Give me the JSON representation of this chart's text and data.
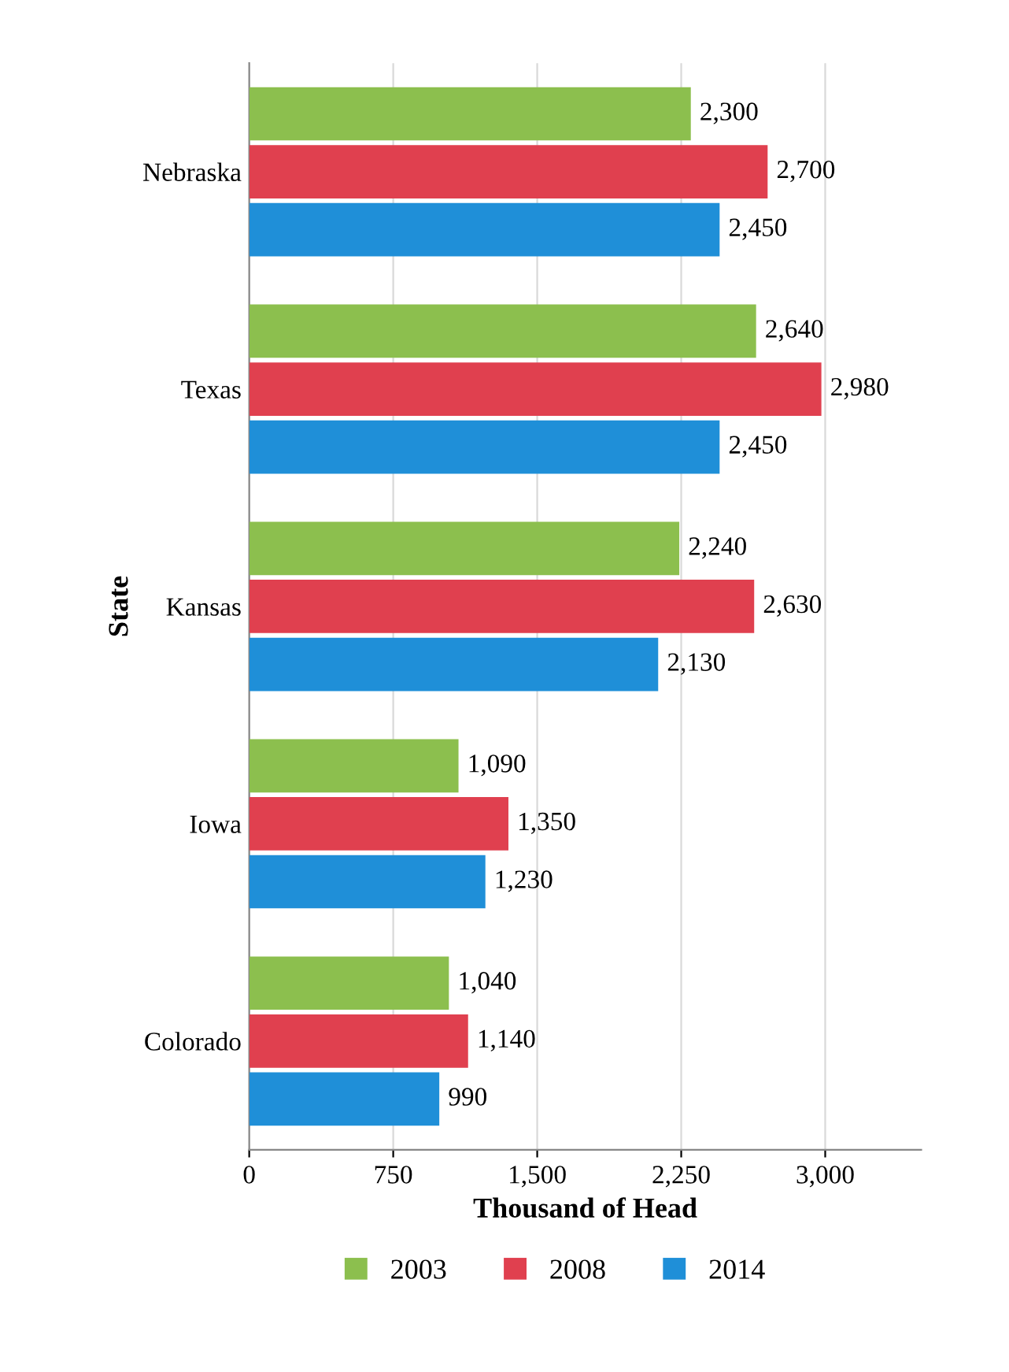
{
  "chart_data": {
    "type": "bar",
    "orientation": "horizontal",
    "ylabel": "State",
    "xlabel": "Thousand of Head",
    "categories": [
      "Nebraska",
      "Texas",
      "Kansas",
      "Iowa",
      "Colorado"
    ],
    "series": [
      {
        "name": "2003",
        "color": "#8cbf4e",
        "values": [
          2300,
          2640,
          2240,
          1090,
          1040
        ],
        "value_labels": [
          "2,300",
          "2,640",
          "2,240",
          "1,090",
          "1,040"
        ]
      },
      {
        "name": "2008",
        "color": "#e0404f",
        "values": [
          2700,
          2980,
          2630,
          1350,
          1140
        ],
        "value_labels": [
          "2,700",
          "2,980",
          "2,630",
          "1,350",
          "1,140"
        ]
      },
      {
        "name": "2014",
        "color": "#1f8fd8",
        "values": [
          2450,
          2450,
          2130,
          1230,
          990
        ],
        "value_labels": [
          "2,450",
          "2,450",
          "2,130",
          "1,230",
          "990"
        ]
      }
    ],
    "xlim": [
      0,
      3500
    ],
    "xticks": [
      {
        "value": 0,
        "label": "0"
      },
      {
        "value": 750,
        "label": "750"
      },
      {
        "value": 1500,
        "label": "1,500"
      },
      {
        "value": 2250,
        "label": "2,250"
      },
      {
        "value": 3000,
        "label": "3,000"
      }
    ],
    "grid": "x",
    "legend": "bottom"
  }
}
